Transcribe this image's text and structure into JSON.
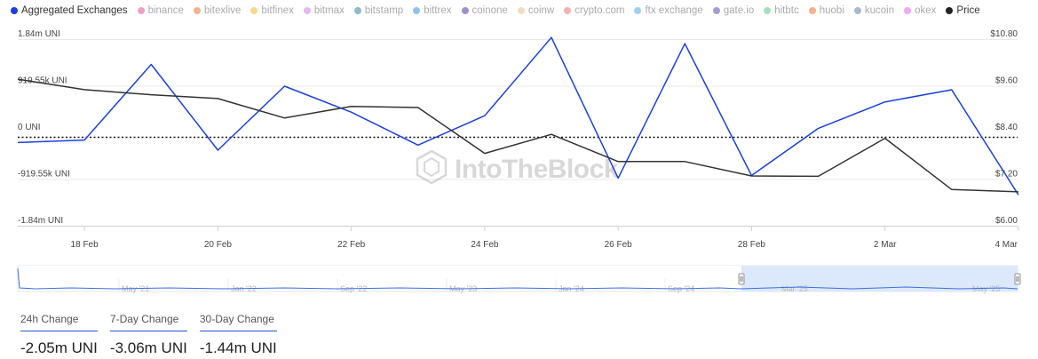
{
  "legend": [
    {
      "label": "Aggregated Exchanges",
      "color": "#1a40e0",
      "active": true
    },
    {
      "label": "binance",
      "color": "#f0a0c8",
      "active": false
    },
    {
      "label": "bitexlive",
      "color": "#f5b38d",
      "active": false
    },
    {
      "label": "bitfinex",
      "color": "#f3d98a",
      "active": false
    },
    {
      "label": "bitmax",
      "color": "#e6b8f0",
      "active": false
    },
    {
      "label": "bitstamp",
      "color": "#8fbac8",
      "active": false
    },
    {
      "label": "bittrex",
      "color": "#8ec2f0",
      "active": false
    },
    {
      "label": "coinone",
      "color": "#a28fcc",
      "active": false
    },
    {
      "label": "coinw",
      "color": "#f5dcc0",
      "active": false
    },
    {
      "label": "crypto.com",
      "color": "#f5b0b0",
      "active": false
    },
    {
      "label": "ftx exchange",
      "color": "#9cd0f0",
      "active": false
    },
    {
      "label": "gate.io",
      "color": "#a0a0d8",
      "active": false
    },
    {
      "label": "hitbtc",
      "color": "#a8e0b8",
      "active": false
    },
    {
      "label": "huobi",
      "color": "#f5b090",
      "active": false
    },
    {
      "label": "kucoin",
      "color": "#a8b8d0",
      "active": false
    },
    {
      "label": "okex",
      "color": "#f0a8f0",
      "active": false
    },
    {
      "label": "Price",
      "color": "#222222",
      "active": true
    }
  ],
  "chart_data": {
    "type": "line",
    "x": [
      "17 Feb",
      "18 Feb",
      "19 Feb",
      "20 Feb",
      "21 Feb",
      "22 Feb",
      "23 Feb",
      "24 Feb",
      "25 Feb",
      "26 Feb",
      "27 Feb",
      "28 Feb",
      "1 Mar",
      "2 Mar",
      "3 Mar",
      "4 Mar"
    ],
    "x_tick_labels": [
      "18 Feb",
      "20 Feb",
      "22 Feb",
      "24 Feb",
      "26 Feb",
      "28 Feb",
      "2 Mar",
      "4 Mar"
    ],
    "y_left_ticks": [
      "1.84m UNI",
      "919.55k UNI",
      "0 UNI",
      "-919.55k UNI",
      "-1.84m UNI"
    ],
    "y_right_ticks": [
      "$10.80",
      "$9.60",
      "$8.40",
      "$7.20",
      "$6.00"
    ],
    "ylim_left": [
      -1839100,
      1839100
    ],
    "ylim_right": [
      6.0,
      10.8
    ],
    "series": [
      {
        "name": "Aggregated Exchanges",
        "axis": "left",
        "color": "#1a40e0",
        "values": [
          -200000,
          -150000,
          1340000,
          -350000,
          910000,
          400000,
          -250000,
          330000,
          1870000,
          -900000,
          1750000,
          -850000,
          80000,
          600000,
          840000,
          -1230000
        ]
      },
      {
        "name": "Price",
        "axis": "right",
        "color": "#333333",
        "values": [
          9.77,
          9.5,
          9.37,
          9.27,
          8.77,
          9.07,
          9.04,
          7.86,
          8.35,
          7.65,
          7.65,
          7.28,
          7.27,
          8.25,
          6.93,
          6.87
        ]
      }
    ],
    "zero_line": "dotted",
    "grid": "horizontal"
  },
  "navigator": {
    "labels": [
      "May '21",
      "Jan '22",
      "Sep '22",
      "May '23",
      "Jan '24",
      "Sep '24",
      "Mar '25",
      "May '25"
    ]
  },
  "watermark": "IntoTheBlock",
  "stats": [
    {
      "label": "24h Change",
      "value": "-2.05m UNI"
    },
    {
      "label": "7-Day Change",
      "value": "-3.06m UNI"
    },
    {
      "label": "30-Day Change",
      "value": "-1.44m UNI"
    }
  ]
}
